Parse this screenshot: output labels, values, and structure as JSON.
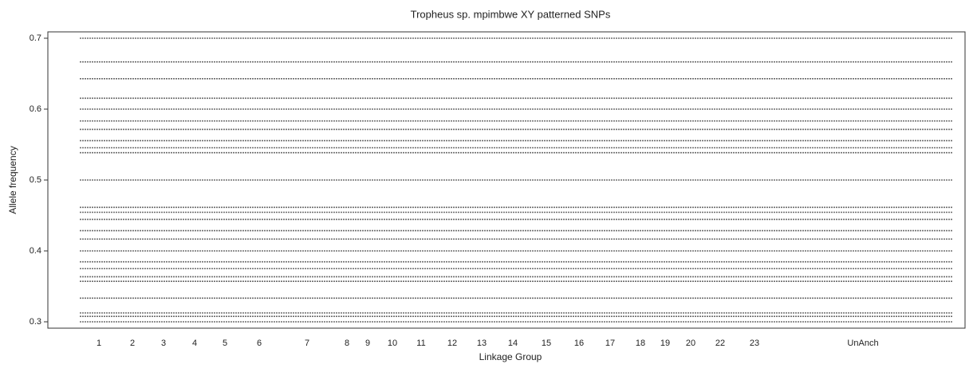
{
  "chart_data": {
    "type": "scatter",
    "title": "Tropheus sp. mpimbwe XY patterned SNPs",
    "xlabel": "Linkage Group",
    "ylabel": "Allele frequency",
    "xlim": [
      0,
      1150
    ],
    "xticks": [
      {
        "value": 64,
        "label": "1"
      },
      {
        "value": 106,
        "label": "2"
      },
      {
        "value": 145,
        "label": "3"
      },
      {
        "value": 184,
        "label": "4"
      },
      {
        "value": 222,
        "label": "5"
      },
      {
        "value": 265,
        "label": "6"
      },
      {
        "value": 325,
        "label": "7"
      },
      {
        "value": 375,
        "label": "8"
      },
      {
        "value": 401,
        "label": "9"
      },
      {
        "value": 432,
        "label": "10"
      },
      {
        "value": 468,
        "label": "11"
      },
      {
        "value": 507,
        "label": "12"
      },
      {
        "value": 544,
        "label": "13"
      },
      {
        "value": 583,
        "label": "14"
      },
      {
        "value": 625,
        "label": "15"
      },
      {
        "value": 666,
        "label": "16"
      },
      {
        "value": 705,
        "label": "17"
      },
      {
        "value": 743,
        "label": "18"
      },
      {
        "value": 774,
        "label": "19"
      },
      {
        "value": 806,
        "label": "20"
      },
      {
        "value": 843,
        "label": "22"
      },
      {
        "value": 886,
        "label": "23"
      },
      {
        "value": 1022,
        "label": "UnAnch"
      }
    ],
    "ylim": [
      0.291,
      0.709
    ],
    "yticks": [
      0.3,
      0.4,
      0.5,
      0.6,
      0.7
    ],
    "x_extent": [
      40,
      1135
    ],
    "color": "#555555",
    "values": [
      0.7,
      0.6667,
      0.6429,
      0.6154,
      0.6,
      0.5833,
      0.5714,
      0.5556,
      0.5455,
      0.5385,
      0.5,
      0.4615,
      0.4545,
      0.4444,
      0.4286,
      0.4167,
      0.4,
      0.3846,
      0.375,
      0.3636,
      0.3571,
      0.3333,
      0.3125,
      0.3077,
      0.3
    ]
  }
}
